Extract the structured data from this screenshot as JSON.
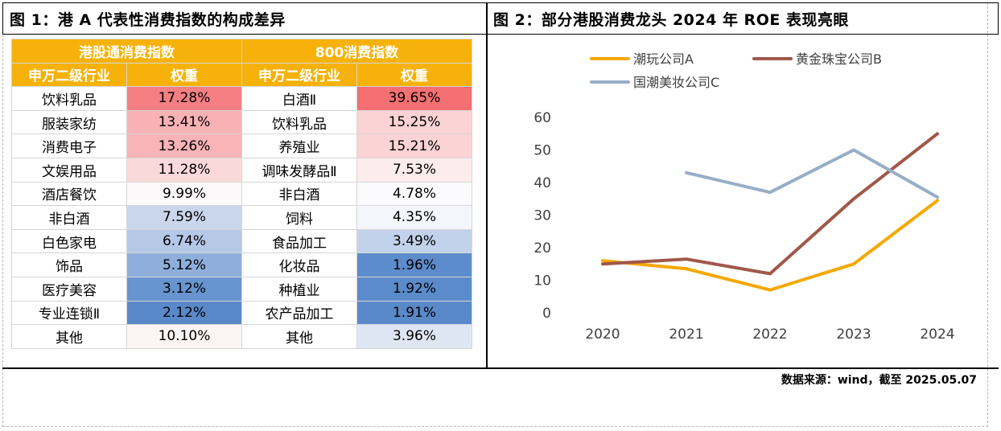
{
  "fig1": {
    "title": "图 1：港 A 代表性消费指数的构成差异",
    "groups": [
      "港股通消费指数",
      "800消费指数"
    ],
    "col_headers": [
      "申万二级行业",
      "权重",
      "申万二级行业",
      "权重"
    ],
    "rows": [
      {
        "l_ind": "饮料乳品",
        "l_w": "17.28%",
        "l_c": "#f47f82",
        "r_ind": "白酒Ⅱ",
        "r_w": "39.65%",
        "r_c": "#f47073"
      },
      {
        "l_ind": "服装家纺",
        "l_w": "13.41%",
        "l_c": "#f8b2b5",
        "r_ind": "饮料乳品",
        "r_w": "15.25%",
        "r_c": "#fbd3d5"
      },
      {
        "l_ind": "消费电子",
        "l_w": "13.26%",
        "l_c": "#f8b4b6",
        "r_ind": "养殖业",
        "r_w": "15.21%",
        "r_c": "#fbd3d5"
      },
      {
        "l_ind": "文娱用品",
        "l_w": "11.28%",
        "l_c": "#fbd9da",
        "r_ind": "调味发酵品Ⅱ",
        "r_w": "7.53%",
        "r_c": "#fdeced"
      },
      {
        "l_ind": "酒店餐饮",
        "l_w": "9.99%",
        "l_c": "#fdf9fa",
        "r_ind": "非白酒",
        "r_w": "4.78%",
        "r_c": "#fbfbfd"
      },
      {
        "l_ind": "非白酒",
        "l_w": "7.59%",
        "l_c": "#cad6ec",
        "r_ind": "饲料",
        "r_w": "4.35%",
        "r_c": "#f4f6fb"
      },
      {
        "l_ind": "白色家电",
        "l_w": "6.74%",
        "l_c": "#b5c8e6",
        "r_ind": "食品加工",
        "r_w": "3.49%",
        "r_c": "#c2d2ea"
      },
      {
        "l_ind": "饰品",
        "l_w": "5.12%",
        "l_c": "#8eaedb",
        "r_ind": "化妆品",
        "r_w": "1.96%",
        "r_c": "#5d8ccc"
      },
      {
        "l_ind": "医疗美容",
        "l_w": "3.12%",
        "l_c": "#6894cf",
        "r_ind": "种植业",
        "r_w": "1.92%",
        "r_c": "#5b8bcb"
      },
      {
        "l_ind": "专业连锁Ⅱ",
        "l_w": "2.12%",
        "l_c": "#5a89ca",
        "r_ind": "农产品加工",
        "r_w": "1.91%",
        "r_c": "#5a89ca"
      },
      {
        "l_ind": "其他",
        "l_w": "10.10%",
        "l_c": "#fdf4f5",
        "r_ind": "其他",
        "r_w": "3.96%",
        "r_c": "#dfe6f3"
      }
    ]
  },
  "fig2": {
    "title": "图 2：部分港股消费龙头 2024 年 ROE 表现亮眼"
  },
  "chart_data": {
    "type": "line",
    "x": [
      "2020",
      "2021",
      "2022",
      "2023",
      "2024"
    ],
    "ylim": [
      0,
      60
    ],
    "yticks": [
      "0",
      "10",
      "20",
      "30",
      "40",
      "50",
      "60"
    ],
    "legend": "top-left",
    "grid": false,
    "series": [
      {
        "name": "潮玩公司A",
        "color": "#f5a800",
        "values": [
          16,
          13.5,
          7,
          15,
          34.5
        ]
      },
      {
        "name": "黄金珠宝公司B",
        "color": "#a0584a",
        "values": [
          15,
          16.5,
          12,
          35,
          55
        ]
      },
      {
        "name": "国潮美妆公司C",
        "color": "#97aec6",
        "values": [
          null,
          43,
          37,
          50,
          35.5
        ]
      }
    ]
  },
  "source": "数据来源：wind，截至 2025.05.07"
}
